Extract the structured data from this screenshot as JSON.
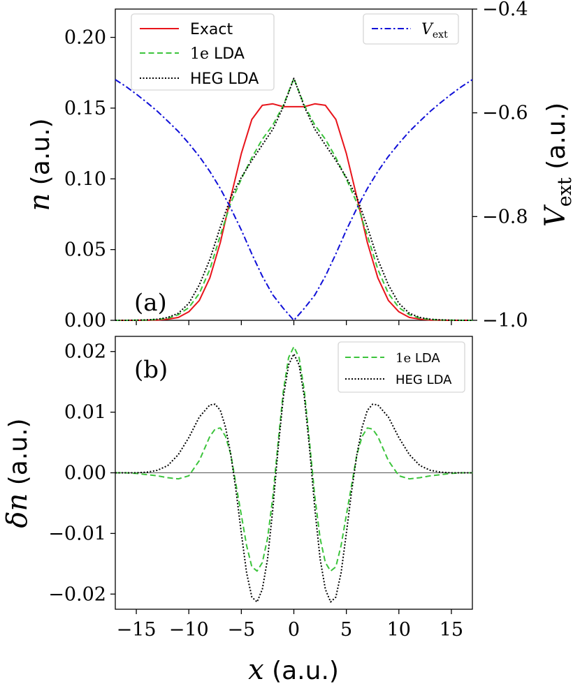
{
  "chart_data": [
    {
      "panel": "(a)",
      "type": "line",
      "xlabel": "x (a.u.)",
      "ylabel": "n (a.u.)",
      "ylabel_right": "V_ext (a.u.)",
      "xlim": [
        -17,
        17
      ],
      "ylim": [
        0.0,
        0.22
      ],
      "ylim_right": [
        -1.0,
        -0.4
      ],
      "y_ticks": [
        "0.00",
        "0.05",
        "0.10",
        "0.15",
        "0.20"
      ],
      "y_ticks_right": [
        "−1.0",
        "−0.8",
        "−0.6",
        "−0.4"
      ],
      "x": [
        -17,
        -16,
        -15,
        -14,
        -13,
        -12,
        -11,
        -10,
        -9,
        -8,
        -7,
        -6,
        -5,
        -4,
        -3,
        -2,
        -1,
        0,
        1,
        2,
        3,
        4,
        5,
        6,
        7,
        8,
        9,
        10,
        11,
        12,
        13,
        14,
        15,
        16,
        17
      ],
      "series": [
        {
          "name": "Exact",
          "color": "#e8141b",
          "dash": "solid",
          "axis": "left",
          "values": [
            0.0,
            0.0,
            0.0,
            0.0001,
            0.0002,
            0.0008,
            0.002,
            0.006,
            0.014,
            0.03,
            0.055,
            0.087,
            0.118,
            0.142,
            0.152,
            0.153,
            0.151,
            0.151,
            0.151,
            0.153,
            0.152,
            0.142,
            0.118,
            0.087,
            0.055,
            0.03,
            0.014,
            0.006,
            0.002,
            0.0008,
            0.0002,
            0.0001,
            0.0,
            0.0,
            0.0
          ]
        },
        {
          "name": "1e LDA",
          "color": "#3cc43c",
          "dash": "dashed",
          "axis": "left",
          "values": [
            0.0,
            0.0,
            0.0001,
            0.0002,
            0.0006,
            0.0015,
            0.004,
            0.009,
            0.019,
            0.036,
            0.06,
            0.083,
            0.1,
            0.115,
            0.128,
            0.138,
            0.152,
            0.171,
            0.152,
            0.138,
            0.128,
            0.115,
            0.1,
            0.083,
            0.06,
            0.036,
            0.019,
            0.009,
            0.004,
            0.0015,
            0.0006,
            0.0002,
            0.0001,
            0.0,
            0.0
          ]
        },
        {
          "name": "HEG LDA",
          "color": "#000000",
          "dash": "dotted",
          "axis": "left",
          "values": [
            0.0,
            0.0,
            0.0001,
            0.0003,
            0.0008,
            0.002,
            0.005,
            0.012,
            0.025,
            0.043,
            0.066,
            0.087,
            0.101,
            0.113,
            0.124,
            0.135,
            0.151,
            0.171,
            0.151,
            0.135,
            0.124,
            0.113,
            0.101,
            0.087,
            0.066,
            0.043,
            0.025,
            0.012,
            0.005,
            0.002,
            0.0008,
            0.0003,
            0.0001,
            0.0,
            0.0
          ]
        },
        {
          "name": "V_ext",
          "color": "#1010d8",
          "dash": "dashdot",
          "axis": "right",
          "values": [
            -0.536,
            -0.549,
            -0.564,
            -0.58,
            -0.597,
            -0.616,
            -0.636,
            -0.659,
            -0.684,
            -0.713,
            -0.746,
            -0.784,
            -0.826,
            -0.872,
            -0.915,
            -0.951,
            -0.977,
            -1.0,
            -0.977,
            -0.951,
            -0.915,
            -0.872,
            -0.826,
            -0.784,
            -0.746,
            -0.713,
            -0.684,
            -0.659,
            -0.636,
            -0.616,
            -0.597,
            -0.58,
            -0.564,
            -0.549,
            -0.536
          ]
        }
      ],
      "legend": {
        "placement": "top-left",
        "entries": [
          "Exact",
          "1e LDA",
          "HEG LDA"
        ]
      },
      "legend_right": {
        "placement": "top-right",
        "entries": [
          "V_ext"
        ]
      }
    },
    {
      "panel": "(b)",
      "type": "line",
      "xlabel": "x (a.u.)",
      "ylabel": "δn (a.u.)",
      "xlim": [
        -17,
        17
      ],
      "ylim": [
        -0.0225,
        0.0225
      ],
      "x_ticks": [
        "−15",
        "−10",
        "−5",
        "0",
        "5",
        "10",
        "15"
      ],
      "y_ticks": [
        "−0.02",
        "−0.01",
        "0.00",
        "0.01",
        "0.02"
      ],
      "x": [
        -17,
        -16,
        -15,
        -14,
        -13,
        -12,
        -11,
        -10,
        -9,
        -8,
        -7.5,
        -7,
        -6.5,
        -6,
        -5.5,
        -5,
        -4.5,
        -4,
        -3.5,
        -3,
        -2.5,
        -2,
        -1.5,
        -1,
        -0.5,
        0,
        0.5,
        1,
        1.5,
        2,
        2.5,
        3,
        3.5,
        4,
        4.5,
        5,
        5.5,
        6,
        6.5,
        7,
        7.5,
        8,
        9,
        10,
        11,
        12,
        13,
        14,
        15,
        16,
        17
      ],
      "series": [
        {
          "name": "1e LDA",
          "color": "#3cc43c",
          "dash": "dashed",
          "values": [
            0.0,
            0.0,
            -0.0001,
            -0.0003,
            -0.0005,
            -0.0008,
            -0.001,
            -0.0005,
            0.002,
            0.006,
            0.0072,
            0.0074,
            0.006,
            0.003,
            -0.002,
            -0.007,
            -0.012,
            -0.0155,
            -0.0162,
            -0.0148,
            -0.0108,
            -0.004,
            0.005,
            0.0135,
            0.019,
            0.0208,
            0.019,
            0.0135,
            0.005,
            -0.004,
            -0.0108,
            -0.0148,
            -0.0162,
            -0.0155,
            -0.012,
            -0.007,
            -0.002,
            0.003,
            0.006,
            0.0074,
            0.0072,
            0.006,
            0.002,
            -0.0005,
            -0.001,
            -0.0008,
            -0.0005,
            -0.0003,
            -0.0001,
            0.0,
            0.0
          ]
        },
        {
          "name": "HEG LDA",
          "color": "#000000",
          "dash": "dotted",
          "values": [
            0.0,
            0.0,
            0.0,
            0.0001,
            0.0004,
            0.0012,
            0.003,
            0.0058,
            0.0092,
            0.0112,
            0.0113,
            0.0103,
            0.0075,
            0.003,
            -0.003,
            -0.01,
            -0.0165,
            -0.0205,
            -0.0213,
            -0.0192,
            -0.0142,
            -0.006,
            0.004,
            0.0125,
            0.0178,
            0.0196,
            0.0178,
            0.0125,
            0.004,
            -0.006,
            -0.0142,
            -0.0192,
            -0.0213,
            -0.0205,
            -0.0165,
            -0.01,
            -0.003,
            0.003,
            0.0075,
            0.0103,
            0.0113,
            0.0112,
            0.0092,
            0.0058,
            0.003,
            0.0012,
            0.0004,
            0.0001,
            0.0,
            0.0,
            0.0
          ]
        }
      ],
      "legend": {
        "placement": "top-right",
        "entries": [
          "1e LDA",
          "HEG LDA"
        ]
      }
    }
  ],
  "panel_tags": {
    "a": "(a)",
    "b": "(b)"
  },
  "axis_labels": {
    "top_y_symbol": "n",
    "top_y_units": "(a.u.)",
    "right_y_symbol": "V",
    "right_y_sub": "ext",
    "right_y_units": "(a.u.)",
    "bottom_y_symbol": "δn",
    "bottom_y_units": "(a.u.)",
    "x_symbol": "x",
    "x_units": "(a.u.)"
  },
  "legend_labels": {
    "exact": "Exact",
    "one_e_sym": "1e",
    "one_e_txt": "LDA",
    "heg": "HEG LDA",
    "vext_sym": "V",
    "vext_sub": "ext"
  }
}
